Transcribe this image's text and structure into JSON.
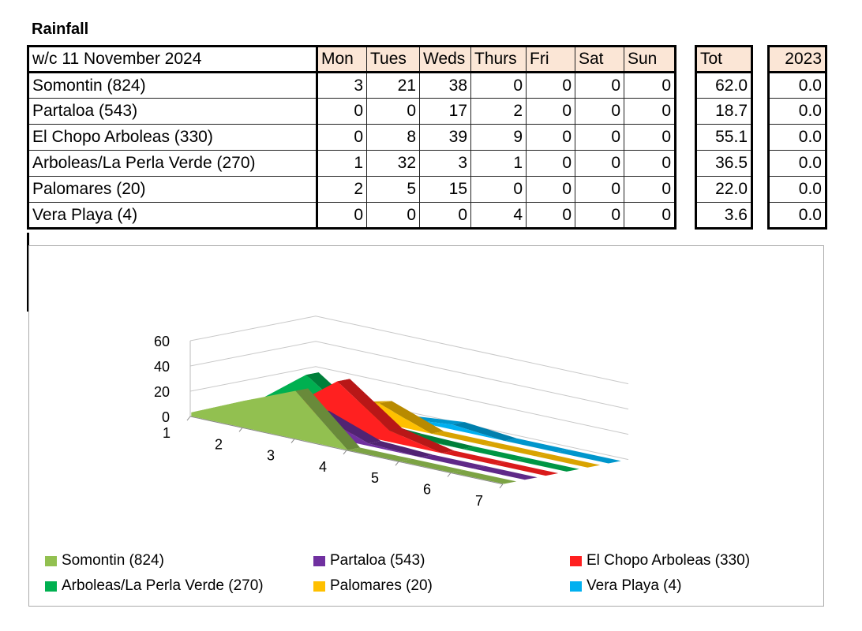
{
  "title": "Rainfall",
  "table": {
    "week_label": "w/c 11 November 2024",
    "days": [
      "Mon",
      "Tues",
      "Weds",
      "Thurs",
      "Fri",
      "Sat",
      "Sun"
    ],
    "tot_header": "Tot",
    "prev_header": "2023",
    "rows": [
      {
        "name": "Somontin (824)",
        "values": [
          "3",
          "21",
          "38",
          "0",
          "0",
          "0",
          "0"
        ],
        "tot": "62.0",
        "prev": "0.0"
      },
      {
        "name": "Partaloa (543)",
        "values": [
          "0",
          "0",
          "17",
          "2",
          "0",
          "0",
          "0"
        ],
        "tot": "18.7",
        "prev": "0.0"
      },
      {
        "name": "El Chopo Arboleas (330)",
        "values": [
          "0",
          "8",
          "39",
          "9",
          "0",
          "0",
          "0"
        ],
        "tot": "55.1",
        "prev": "0.0"
      },
      {
        "name": "Arboleas/La Perla Verde (270)",
        "values": [
          "1",
          "32",
          "3",
          "1",
          "0",
          "0",
          "0"
        ],
        "tot": "36.5",
        "prev": "0.0"
      },
      {
        "name": "Palomares (20)",
        "values": [
          "2",
          "5",
          "15",
          "0",
          "0",
          "0",
          "0"
        ],
        "tot": "22.0",
        "prev": "0.0"
      },
      {
        "name": "Vera Playa (4)",
        "values": [
          "0",
          "0",
          "0",
          "4",
          "0",
          "0",
          "0"
        ],
        "tot": "3.6",
        "prev": "0.0"
      }
    ]
  },
  "chart_data": {
    "type": "area",
    "title": "",
    "x": [
      1,
      2,
      3,
      4,
      5,
      6,
      7
    ],
    "y_ticks": [
      0,
      20,
      40,
      60
    ],
    "ylim": [
      0,
      60
    ],
    "legend_position": "bottom",
    "series": [
      {
        "name": "Somontin (824)",
        "values": [
          3,
          21,
          38,
          0,
          0,
          0,
          0
        ],
        "color": "#92c050"
      },
      {
        "name": "Partaloa (543)",
        "values": [
          0,
          0,
          17,
          2,
          0,
          0,
          0
        ],
        "color": "#7030a0"
      },
      {
        "name": "El Chopo Arboleas (330)",
        "values": [
          0,
          8,
          39,
          9,
          0,
          0,
          0
        ],
        "color": "#ff2020"
      },
      {
        "name": "Arboleas/La Perla Verde (270)",
        "values": [
          1,
          32,
          3,
          1,
          0,
          0,
          0
        ],
        "color": "#00b050"
      },
      {
        "name": "Palomares (20)",
        "values": [
          2,
          5,
          15,
          0,
          0,
          0,
          0
        ],
        "color": "#ffc000"
      },
      {
        "name": "Vera Playa (4)",
        "values": [
          0,
          0,
          0,
          4,
          0,
          0,
          0
        ],
        "color": "#00b0f0"
      }
    ]
  }
}
